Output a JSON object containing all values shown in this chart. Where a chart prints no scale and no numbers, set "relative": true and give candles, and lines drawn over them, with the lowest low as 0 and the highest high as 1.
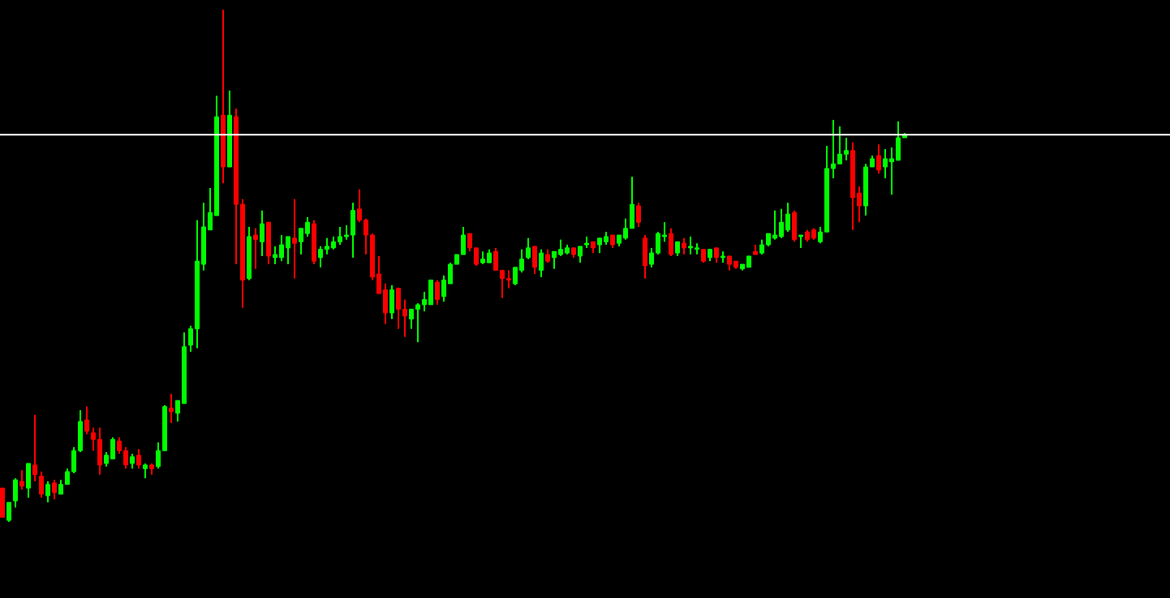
{
  "chart_data": {
    "type": "candlestick",
    "relative": true,
    "categories": [
      null,
      null,
      null,
      null,
      null,
      null,
      null,
      null,
      null,
      null,
      null,
      null,
      null,
      null,
      null,
      null,
      null,
      null,
      null,
      null,
      null,
      null,
      null,
      null,
      null,
      null,
      null,
      null,
      null,
      null,
      null,
      null,
      null,
      null,
      null,
      null,
      null,
      null,
      null,
      null,
      null,
      null,
      null,
      null,
      null,
      null,
      null,
      null,
      null,
      null,
      null,
      null,
      null,
      null,
      null,
      null,
      null,
      null,
      null,
      null,
      null,
      null,
      null,
      null,
      null,
      null,
      null,
      null,
      null,
      null,
      null,
      null,
      null,
      null,
      null,
      null,
      null,
      null,
      null,
      null,
      null,
      null,
      null,
      null,
      null,
      null,
      null,
      null,
      null,
      null,
      null,
      null,
      null,
      null,
      null,
      null,
      null,
      null,
      null,
      null,
      null,
      null,
      null,
      null,
      null,
      null,
      null,
      null,
      null,
      null,
      null,
      null,
      null,
      null,
      null,
      null,
      null,
      null,
      null,
      null,
      null,
      null,
      null,
      null,
      null,
      null,
      null,
      null,
      null,
      null,
      null,
      null,
      null,
      null,
      null,
      null,
      null,
      null,
      null,
      null
    ],
    "ohlc": [
      [
        0.066,
        0.066,
        0.009,
        0.009
      ],
      [
        0.003,
        0.038,
        0,
        0.038
      ],
      [
        0.041,
        0.085,
        0.028,
        0.082
      ],
      [
        0.079,
        0.101,
        0.063,
        0.07
      ],
      [
        0.066,
        0.114,
        0.047,
        0.114
      ],
      [
        0.111,
        0.209,
        0.079,
        0.092
      ],
      [
        0.089,
        0.098,
        0.047,
        0.054
      ],
      [
        0.051,
        0.079,
        0.038,
        0.073
      ],
      [
        0.076,
        0.082,
        0.044,
        0.057
      ],
      [
        0.054,
        0.082,
        0.054,
        0.073
      ],
      [
        0.073,
        0.104,
        0.073,
        0.098
      ],
      [
        0.098,
        0.146,
        0.095,
        0.139
      ],
      [
        0.139,
        0.218,
        0.136,
        0.196
      ],
      [
        0.199,
        0.225,
        0.171,
        0.177
      ],
      [
        0.174,
        0.184,
        0.139,
        0.161
      ],
      [
        0.161,
        0.184,
        0.092,
        0.111
      ],
      [
        0.114,
        0.136,
        0.108,
        0.13
      ],
      [
        0.123,
        0.165,
        0.123,
        0.161
      ],
      [
        0.158,
        0.165,
        0.133,
        0.139
      ],
      [
        0.139,
        0.146,
        0.104,
        0.111
      ],
      [
        0.114,
        0.133,
        0.104,
        0.127
      ],
      [
        0.13,
        0.142,
        0.104,
        0.111
      ],
      [
        0.104,
        0.114,
        0.085,
        0.111
      ],
      [
        0.111,
        0.114,
        0.092,
        0.104
      ],
      [
        0.108,
        0.155,
        0.104,
        0.139
      ],
      [
        0.139,
        0.228,
        0.139,
        0.225
      ],
      [
        0.222,
        0.25,
        0.193,
        0.215
      ],
      [
        0.212,
        0.237,
        0.196,
        0.237
      ],
      [
        0.231,
        0.37,
        0.231,
        0.342
      ],
      [
        0.345,
        0.383,
        0.332,
        0.377
      ],
      [
        0.377,
        0.589,
        0.339,
        0.509
      ],
      [
        0.503,
        0.623,
        0.491,
        0.576
      ],
      [
        0.57,
        0.652,
        0.57,
        0.604
      ],
      [
        0.598,
        0.832,
        0.598,
        0.791
      ],
      [
        0.794,
        1,
        0.661,
        0.693
      ],
      [
        0.693,
        0.842,
        0.693,
        0.794
      ],
      [
        0.791,
        0.807,
        0.503,
        0.62
      ],
      [
        0.62,
        0.63,
        0.418,
        0.472
      ],
      [
        0.475,
        0.576,
        0.472,
        0.557
      ],
      [
        0.56,
        0.573,
        0.494,
        0.551
      ],
      [
        0.547,
        0.608,
        0.519,
        0.582
      ],
      [
        0.585,
        0.585,
        0.503,
        0.519
      ],
      [
        0.516,
        0.538,
        0.503,
        0.522
      ],
      [
        0.516,
        0.56,
        0.509,
        0.541
      ],
      [
        0.535,
        0.557,
        0.503,
        0.557
      ],
      [
        0.554,
        0.63,
        0.475,
        0.544
      ],
      [
        0.547,
        0.573,
        0.522,
        0.573
      ],
      [
        0.563,
        0.595,
        0.557,
        0.585
      ],
      [
        0.582,
        0.589,
        0.503,
        0.509
      ],
      [
        0.516,
        0.538,
        0.497,
        0.532
      ],
      [
        0.532,
        0.554,
        0.522,
        0.538
      ],
      [
        0.535,
        0.557,
        0.532,
        0.547
      ],
      [
        0.547,
        0.576,
        0.541,
        0.557
      ],
      [
        0.557,
        0.579,
        0.551,
        0.56
      ],
      [
        0.56,
        0.623,
        0.516,
        0.608
      ],
      [
        0.611,
        0.649,
        0.585,
        0.589
      ],
      [
        0.589,
        0.592,
        0.522,
        0.56
      ],
      [
        0.56,
        0.563,
        0.472,
        0.478
      ],
      [
        0.484,
        0.519,
        0.446,
        0.446
      ],
      [
        0.453,
        0.465,
        0.386,
        0.408
      ],
      [
        0.408,
        0.462,
        0.396,
        0.453
      ],
      [
        0.456,
        0.456,
        0.377,
        0.415
      ],
      [
        0.415,
        0.434,
        0.361,
        0.402
      ],
      [
        0.396,
        0.415,
        0.377,
        0.415
      ],
      [
        0.415,
        0.427,
        0.351,
        0.424
      ],
      [
        0.424,
        0.449,
        0.411,
        0.434
      ],
      [
        0.424,
        0.472,
        0.424,
        0.472
      ],
      [
        0.468,
        0.472,
        0.424,
        0.434
      ],
      [
        0.44,
        0.481,
        0.43,
        0.472
      ],
      [
        0.465,
        0.506,
        0.465,
        0.503
      ],
      [
        0.503,
        0.522,
        0.503,
        0.522
      ],
      [
        0.522,
        0.576,
        0.522,
        0.56
      ],
      [
        0.563,
        0.563,
        0.528,
        0.535
      ],
      [
        0.535,
        0.535,
        0.5,
        0.503
      ],
      [
        0.506,
        0.528,
        0.503,
        0.513
      ],
      [
        0.506,
        0.532,
        0.506,
        0.525
      ],
      [
        0.528,
        0.535,
        0.491,
        0.491
      ],
      [
        0.491,
        0.491,
        0.437,
        0.475
      ],
      [
        0.475,
        0.491,
        0.456,
        0.472
      ],
      [
        0.465,
        0.497,
        0.462,
        0.497
      ],
      [
        0.491,
        0.532,
        0.487,
        0.513
      ],
      [
        0.516,
        0.554,
        0.513,
        0.535
      ],
      [
        0.538,
        0.538,
        0.484,
        0.497
      ],
      [
        0.491,
        0.532,
        0.478,
        0.525
      ],
      [
        0.522,
        0.532,
        0.506,
        0.509
      ],
      [
        0.516,
        0.528,
        0.494,
        0.528
      ],
      [
        0.522,
        0.551,
        0.519,
        0.532
      ],
      [
        0.525,
        0.541,
        0.522,
        0.535
      ],
      [
        0.535,
        0.535,
        0.516,
        0.522
      ],
      [
        0.519,
        0.538,
        0.506,
        0.538
      ],
      [
        0.541,
        0.557,
        0.535,
        0.544
      ],
      [
        0.547,
        0.547,
        0.525,
        0.535
      ],
      [
        0.541,
        0.554,
        0.525,
        0.554
      ],
      [
        0.547,
        0.566,
        0.541,
        0.557
      ],
      [
        0.56,
        0.56,
        0.535,
        0.541
      ],
      [
        0.544,
        0.56,
        0.538,
        0.56
      ],
      [
        0.554,
        0.592,
        0.551,
        0.573
      ],
      [
        0.573,
        0.674,
        0.573,
        0.62
      ],
      [
        0.617,
        0.623,
        0.576,
        0.585
      ],
      [
        0.554,
        0.56,
        0.475,
        0.5
      ],
      [
        0.503,
        0.535,
        0.497,
        0.525
      ],
      [
        0.525,
        0.566,
        0.522,
        0.563
      ],
      [
        0.557,
        0.585,
        0.547,
        0.56
      ],
      [
        0.563,
        0.573,
        0.519,
        0.522
      ],
      [
        0.525,
        0.547,
        0.519,
        0.547
      ],
      [
        0.544,
        0.554,
        0.522,
        0.535
      ],
      [
        0.535,
        0.557,
        0.522,
        0.538
      ],
      [
        0.532,
        0.544,
        0.522,
        0.535
      ],
      [
        0.532,
        0.532,
        0.506,
        0.509
      ],
      [
        0.516,
        0.532,
        0.509,
        0.532
      ],
      [
        0.535,
        0.535,
        0.506,
        0.516
      ],
      [
        0.516,
        0.528,
        0.506,
        0.519
      ],
      [
        0.519,
        0.519,
        0.491,
        0.503
      ],
      [
        0.509,
        0.509,
        0.494,
        0.497
      ],
      [
        0.494,
        0.503,
        0.491,
        0.503
      ],
      [
        0.497,
        0.519,
        0.497,
        0.519
      ],
      [
        0.528,
        0.541,
        0.522,
        0.522
      ],
      [
        0.525,
        0.551,
        0.522,
        0.541
      ],
      [
        0.541,
        0.563,
        0.538,
        0.563
      ],
      [
        0.554,
        0.608,
        0.551,
        0.56
      ],
      [
        0.557,
        0.611,
        0.554,
        0.585
      ],
      [
        0.57,
        0.623,
        0.566,
        0.601
      ],
      [
        0.604,
        0.608,
        0.547,
        0.551
      ],
      [
        0.557,
        0.56,
        0.535,
        0.56
      ],
      [
        0.566,
        0.57,
        0.547,
        0.551
      ],
      [
        0.57,
        0.573,
        0.551,
        0.554
      ],
      [
        0.547,
        0.576,
        0.544,
        0.566
      ],
      [
        0.566,
        0.734,
        0.566,
        0.69
      ],
      [
        0.69,
        0.785,
        0.671,
        0.699
      ],
      [
        0.699,
        0.772,
        0.699,
        0.718
      ],
      [
        0.718,
        0.75,
        0.706,
        0.725
      ],
      [
        0.725,
        0.741,
        0.57,
        0.633
      ],
      [
        0.642,
        0.655,
        0.585,
        0.617
      ],
      [
        0.617,
        0.699,
        0.598,
        0.693
      ],
      [
        0.693,
        0.715,
        0.693,
        0.709
      ],
      [
        0.715,
        0.737,
        0.68,
        0.687
      ],
      [
        0.693,
        0.728,
        0.671,
        0.709
      ],
      [
        0.703,
        0.731,
        0.639,
        0.709
      ],
      [
        0.706,
        0.782,
        0.706,
        0.75
      ],
      [
        0.75,
        0.759,
        0.75,
        0.756
      ]
    ],
    "colors": [
      "#ff0000",
      "#00ff00",
      "#00ff00",
      "#ff0000",
      "#00ff00",
      "#ff0000",
      "#ff0000",
      "#00ff00",
      "#ff0000",
      "#00ff00",
      "#00ff00",
      "#00ff00",
      "#00ff00",
      "#ff0000",
      "#ff0000",
      "#ff0000",
      "#00ff00",
      "#00ff00",
      "#ff0000",
      "#ff0000",
      "#00ff00",
      "#ff0000",
      "#00ff00",
      "#ff0000",
      "#00ff00",
      "#00ff00",
      "#ff0000",
      "#00ff00",
      "#00ff00",
      "#00ff00",
      "#00ff00",
      "#00ff00",
      "#00ff00",
      "#00ff00",
      "#ff0000",
      "#00ff00",
      "#ff0000",
      "#ff0000",
      "#00ff00",
      "#ff0000",
      "#00ff00",
      "#ff0000",
      "#00ff00",
      "#00ff00",
      "#00ff00",
      "#ff0000",
      "#00ff00",
      "#00ff00",
      "#ff0000",
      "#00ff00",
      "#00ff00",
      "#00ff00",
      "#00ff00",
      "#00ff00",
      "#00ff00",
      "#ff0000",
      "#ff0000",
      "#ff0000",
      "#ff0000",
      "#ff0000",
      "#00ff00",
      "#ff0000",
      "#ff0000",
      "#00ff00",
      "#00ff00",
      "#00ff00",
      "#00ff00",
      "#ff0000",
      "#00ff00",
      "#00ff00",
      "#00ff00",
      "#00ff00",
      "#ff0000",
      "#ff0000",
      "#00ff00",
      "#00ff00",
      "#ff0000",
      "#ff0000",
      "#ff0000",
      "#00ff00",
      "#00ff00",
      "#00ff00",
      "#ff0000",
      "#00ff00",
      "#ff0000",
      "#00ff00",
      "#00ff00",
      "#00ff00",
      "#ff0000",
      "#00ff00",
      "#00ff00",
      "#ff0000",
      "#00ff00",
      "#00ff00",
      "#ff0000",
      "#00ff00",
      "#00ff00",
      "#00ff00",
      "#ff0000",
      "#ff0000",
      "#00ff00",
      "#00ff00",
      "#00ff00",
      "#ff0000",
      "#00ff00",
      "#ff0000",
      "#00ff00",
      "#00ff00",
      "#ff0000",
      "#00ff00",
      "#ff0000",
      "#00ff00",
      "#ff0000",
      "#ff0000",
      "#00ff00",
      "#00ff00",
      "#ff0000",
      "#00ff00",
      "#00ff00",
      "#00ff00",
      "#00ff00",
      "#00ff00",
      "#ff0000",
      "#00ff00",
      "#ff0000",
      "#ff0000",
      "#00ff00",
      "#00ff00",
      "#00ff00",
      "#00ff00",
      "#00ff00",
      "#ff0000",
      "#ff0000",
      "#00ff00",
      "#00ff00",
      "#ff0000",
      "#00ff00",
      "#00ff00",
      "#00ff00",
      "#00ff00"
    ],
    "ref_lines": [
      {
        "axis": "y",
        "value": 0.756,
        "color": "#ffffff"
      }
    ]
  }
}
